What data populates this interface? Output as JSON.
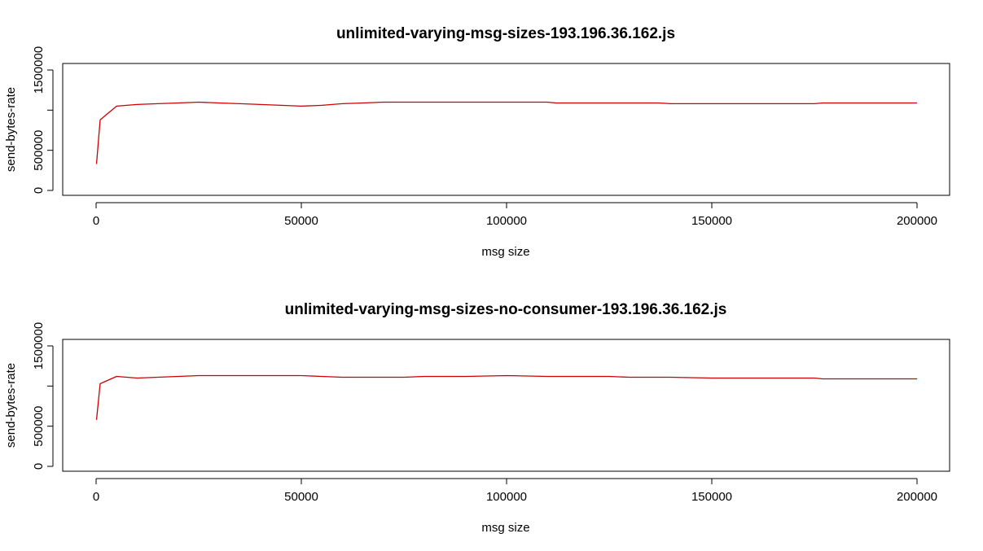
{
  "chart_data": [
    {
      "type": "line",
      "title": "unlimited-varying-msg-sizes-193.196.36.162.js",
      "xlabel": "msg size",
      "ylabel": "send-bytes-rate",
      "xlim": [
        0,
        200000
      ],
      "ylim": [
        0,
        1500000
      ],
      "xticks": [
        0,
        50000,
        100000,
        150000,
        200000
      ],
      "yticks": [
        0,
        500000,
        1500000
      ],
      "xtick_labels": [
        "0",
        "50000",
        "100000",
        "150000",
        "200000"
      ],
      "ytick_labels": [
        "0",
        "500000",
        "1500000"
      ],
      "grid": false,
      "color": "#cc0000",
      "series": [
        {
          "x": [
            100,
            1000,
            5000,
            10000,
            15000,
            20000,
            25000,
            30000,
            35000,
            40000,
            45000,
            50000,
            55000,
            60000,
            65000,
            70000,
            75000,
            80000,
            90000,
            100000,
            110000,
            112000,
            120000,
            130000,
            137000,
            140000,
            150000,
            160000,
            170000,
            175000,
            177000,
            190000,
            200000
          ],
          "y": [
            330000,
            880000,
            1050000,
            1070000,
            1080000,
            1090000,
            1100000,
            1090000,
            1080000,
            1070000,
            1060000,
            1050000,
            1060000,
            1080000,
            1090000,
            1100000,
            1100000,
            1100000,
            1100000,
            1100000,
            1100000,
            1090000,
            1090000,
            1090000,
            1090000,
            1080000,
            1080000,
            1080000,
            1080000,
            1080000,
            1090000,
            1090000,
            1090000
          ]
        }
      ]
    },
    {
      "type": "line",
      "title": "unlimited-varying-msg-sizes-no-consumer-193.196.36.162.js",
      "xlabel": "msg size",
      "ylabel": "send-bytes-rate",
      "xlim": [
        0,
        200000
      ],
      "ylim": [
        0,
        1500000
      ],
      "xticks": [
        0,
        50000,
        100000,
        150000,
        200000
      ],
      "yticks": [
        0,
        500000,
        1500000
      ],
      "xtick_labels": [
        "0",
        "50000",
        "100000",
        "150000",
        "200000"
      ],
      "ytick_labels": [
        "0",
        "500000",
        "1500000"
      ],
      "grid": false,
      "color": "#cc0000",
      "series": [
        {
          "x": [
            100,
            1000,
            5000,
            10000,
            15000,
            20000,
            25000,
            30000,
            40000,
            50000,
            55000,
            60000,
            65000,
            70000,
            75000,
            80000,
            90000,
            100000,
            110000,
            120000,
            125000,
            130000,
            140000,
            150000,
            160000,
            170000,
            175000,
            177000,
            190000,
            200000
          ],
          "y": [
            580000,
            1030000,
            1120000,
            1100000,
            1110000,
            1120000,
            1130000,
            1130000,
            1130000,
            1130000,
            1120000,
            1110000,
            1110000,
            1110000,
            1110000,
            1120000,
            1120000,
            1130000,
            1120000,
            1120000,
            1120000,
            1110000,
            1110000,
            1100000,
            1100000,
            1100000,
            1100000,
            1090000,
            1090000,
            1090000
          ]
        }
      ]
    }
  ]
}
